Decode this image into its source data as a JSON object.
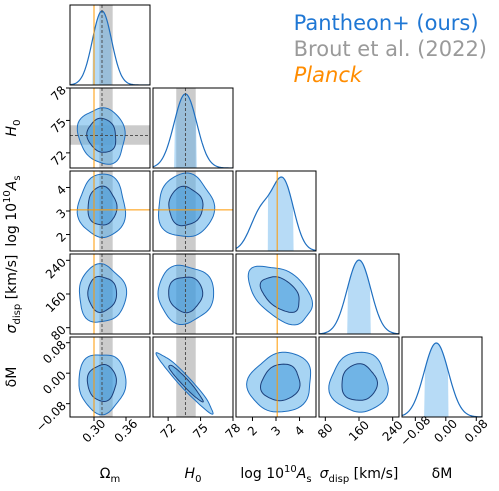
{
  "legend": {
    "ours": "Pantheon+ (ours)",
    "brout": "Brout et al. (2022)",
    "planck": "Planck"
  },
  "colors": {
    "ours_line": "#1f6fc0",
    "ours_fill": "#5fb0ea",
    "ours_fill_inner": "#2f8fd8",
    "brout_band": "#b5b5b5",
    "planck_line": "#ff9900"
  },
  "chart_data": {
    "type": "corner",
    "parameters": [
      {
        "key": "Om",
        "label": "Ω_m",
        "range": [
          0.255,
          0.405
        ],
        "ticks": [
          0.3,
          0.36
        ],
        "tick_labels": [
          "0.30",
          "0.36"
        ],
        "mean": 0.315,
        "sigma": 0.018,
        "brout": [
          0.31,
          0.335
        ],
        "planck": 0.3
      },
      {
        "key": "H0",
        "label": "H_0",
        "range": [
          70.6,
          78.0
        ],
        "ticks": [
          72,
          75,
          78
        ],
        "tick_labels": [
          "72",
          "75",
          "78"
        ],
        "mean": 73.6,
        "sigma": 1.05,
        "brout": [
          72.75,
          74.55
        ],
        "planck": null
      },
      {
        "key": "logAs",
        "label": "log 10^10 A_s",
        "range": [
          1.3,
          4.7
        ],
        "ticks": [
          2,
          3,
          4
        ],
        "tick_labels": [
          "2",
          "3",
          "4"
        ],
        "mean": 3.2,
        "sigma": 0.55,
        "brout": null,
        "planck": 3.05
      },
      {
        "key": "sigma",
        "label": "σ_disp [km/s]",
        "range": [
          65,
          255
        ],
        "ticks": [
          80,
          160,
          240
        ],
        "tick_labels": [
          "80",
          "160",
          "240"
        ],
        "mean": 160,
        "sigma": 28,
        "brout": null,
        "planck": null
      },
      {
        "key": "dM",
        "label": "δM",
        "range": [
          -0.115,
          0.095
        ],
        "ticks": [
          -0.08,
          0.0,
          0.08
        ],
        "tick_labels": [
          "−0.08",
          "0.00",
          "0.08"
        ],
        "mean": -0.025,
        "sigma": 0.032,
        "brout": null,
        "planck": null
      }
    ],
    "correlations": [
      {
        "pair": [
          "H0",
          "Om"
        ],
        "rho": -0.1
      },
      {
        "pair": [
          "logAs",
          "Om"
        ],
        "rho": 0.0
      },
      {
        "pair": [
          "logAs",
          "H0"
        ],
        "rho": 0.0
      },
      {
        "pair": [
          "sigma",
          "Om"
        ],
        "rho": 0.0
      },
      {
        "pair": [
          "sigma",
          "H0"
        ],
        "rho": 0.0
      },
      {
        "pair": [
          "sigma",
          "logAs"
        ],
        "rho": -0.45
      },
      {
        "pair": [
          "dM",
          "Om"
        ],
        "rho": 0.0
      },
      {
        "pair": [
          "dM",
          "H0"
        ],
        "rho": -0.96
      },
      {
        "pair": [
          "dM",
          "logAs"
        ],
        "rho": 0.1
      },
      {
        "pair": [
          "dM",
          "sigma"
        ],
        "rho": 0.0
      }
    ],
    "contour_levels_sigma": [
      1,
      2
    ],
    "grid": false,
    "legend_position": "top-right"
  }
}
